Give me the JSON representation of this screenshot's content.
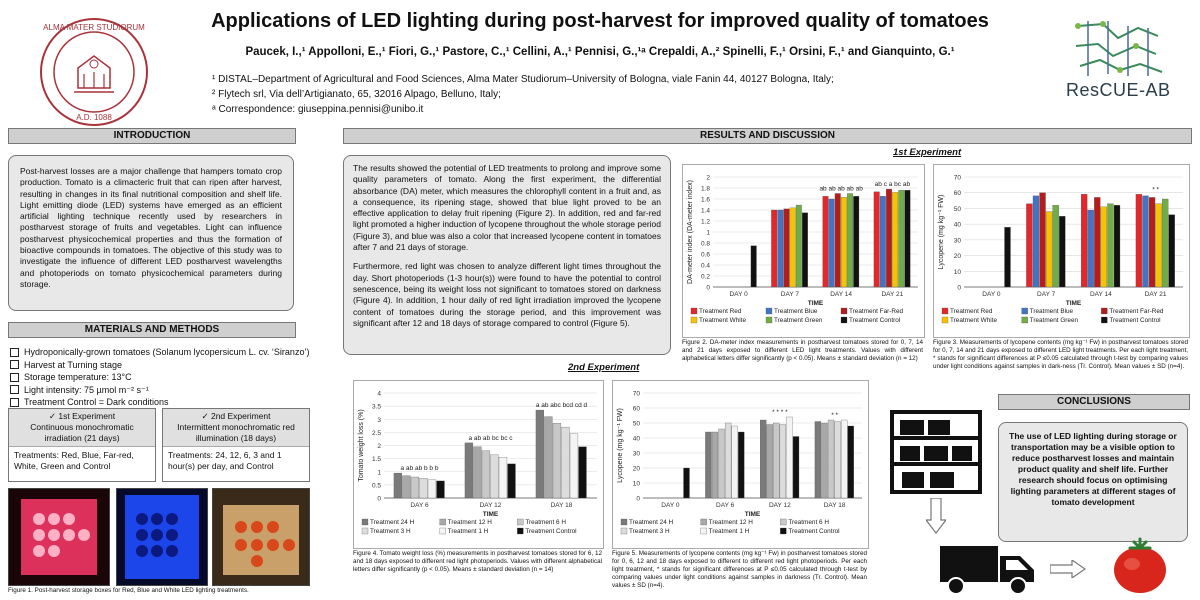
{
  "header": {
    "title": "Applications of LED lighting during post-harvest for improved quality of tomatoes",
    "authors": "Paucek, I.,¹ Appolloni, E.,¹ Fiori, G.,¹ Pastore, C.,¹ Cellini, A.,¹ Pennisi, G.,¹ᵃ Crepaldi, A.,² Spinelli, F.,¹ Orsini, F.,¹ and Gianquinto, G.¹",
    "affiliations": [
      "¹ DISTAL–Department of Agricultural and Food Sciences, Alma Mater Studiorum–University of Bologna, viale Fanin 44, 40127 Bologna, Italy;",
      "² Flytech srl, Via dell’Artigianato, 65, 32016 Alpago, Belluno, Italy;",
      "ᵃ Correspondence:  giuseppina.pennisi@unibo.it"
    ],
    "seal_text": "ALMA MATER STUDIORUM · A.D. 1088",
    "logo_text": "ResCUE-AB"
  },
  "intro": {
    "heading": "INTRODUCTION",
    "text": "Post-harvest losses are a major challenge that hampers tomato crop production. Tomato is a climacteric fruit that can ripen after harvest, resulting in changes in its final nutritional composition and shelf life. Light emitting diode (LED) systems have emerged as an efficient artificial lighting technique recently used by researchers in postharvest storage of fruits and vegetables. Light can influence postharvest physicochemical properties and thus the formation of bioactive compounds in tomatoes. The objective of this study was to investigate the influence of different LED postharvest wavelengths and photoperiods on tomato physicochemical parameters during storage."
  },
  "methods": {
    "heading": "MATERIALS AND METHODS",
    "items": [
      "Hydroponically-grown tomatoes (Solanum lycopersicum L. cv. ‘Siranzo’)",
      "Harvest at Turning stage",
      "Storage temperature: 13°C",
      "Light intensity: 75 µmol m⁻² s⁻¹",
      "Treatment Control = Dark conditions"
    ],
    "exp1": {
      "title": "✓ 1st Experiment",
      "desc": "Continuous monochromatic irradiation (21 days)",
      "treat": "Treatments: Red, Blue, Far-red, White, Green and Control"
    },
    "exp2": {
      "title": "✓ 2nd Experiment",
      "desc": "Intermittent monochromatic red illumination (18 days)",
      "treat": "Treatments: 24, 12, 6, 3 and 1 hour(s) per day, and Control"
    },
    "fig1_caption": "Figure 1. Post-harvest storage boxes for Red, Blue and White LED lighting treatments."
  },
  "results": {
    "heading": "RESULTS AND DISCUSSION",
    "para1": "The results showed the potential of LED treatments to prolong and improve some quality parameters of tomato. Along the first experiment, the differential absorbance (DA) meter, which measures the chlorophyll content in a fruit and, as a consequence, its ripening stage, showed that blue light proved to be an effective application to delay fruit ripening (Figure 2). In addition, red and far-red light promoted a higher induction of lycopene throughout the whole storage period (Figure 3), and blue was also a color that increased lycopene content in tomatoes after 7 and 21 days of storage.",
    "para2": "Furthermore, red light was chosen to analyze different light times throughout the day. Short photoperiods (1-3 hour(s)) were found to have the potential to control senescence, being its weight loss not significant to tomatoes stored on darkness (Figure 4). In addition, 1 hour daily of red light irradiation improved the lycopene content of tomatoes during the storage period, and this improvement was significant after 12 and 18 days of storage compared to control (Figure 5).",
    "exp1_title": "1st Experiment",
    "exp2_title": "2nd Experiment",
    "fig2_caption": "Figure 2. DA-meter index measurements in postharvest tomatoes stored for 0, 7, 14 and 21 days exposed to different LED light treatments. Values with different alphabetical letters differ significantly (p < 0.05). Means ± standard deviation (n = 12)",
    "fig3_caption": "Figure 3. Measurements of lycopene contents (mg kg⁻¹ Fw) in postharvest tomatoes stored for 0, 7, 14 and 21 days exposed to different LED light treatments. Per each light treatment, * stands for significant differences at P ≤0.05 calculated through t-test by comparing values under light conditions against samples in dark-ness (Tr. Control). Mean values ± SD (n=4).",
    "fig4_caption": "Figure 4. Tomato weight loss (%) measurements in postharvest tomatoes stored for 6, 12 and 18 days exposed to different red light photoperiods. Values with different alphabetical letters differ significantly (p < 0.05). Means ± standard deviation (n = 14)",
    "fig5_caption": "Figure 5. Measurements of lycopene contents (mg kg⁻¹ Fw) in postharvest tomatoes stored for 0, 6, 12 and 18 days exposed to different to different red light photoperiods. Per each light treatment, * stands for significant differences at P ≤0.05 calculated through t-test by comparing values under light conditions against samples in darkness (Tr. Control). Mean values ± SD (n=4)."
  },
  "conclusions": {
    "heading": "CONCLUSIONS",
    "text": "The use of LED lighting during storage or transportation may be a visible option to reduce postharvest losses and maintain product quality and shelf life. Further research should focus on optimising lighting parameters at different stages of tomato development"
  },
  "chart_data": [
    {
      "id": "fig2",
      "type": "bar",
      "ylabel": "DA-meter index (DA-meter index)",
      "xlabel": "TIME",
      "ylim": [
        0,
        2
      ],
      "yticks": [
        0,
        0.2,
        0.4,
        0.6,
        0.8,
        1,
        1.2,
        1.4,
        1.6,
        1.8,
        2
      ],
      "categories": [
        "DAY 0",
        "DAY 7",
        "DAY 14",
        "DAY 21"
      ],
      "series": [
        {
          "name": "Treatment Red",
          "color": "#e3272a",
          "values": [
            null,
            1.4,
            1.65,
            1.73
          ]
        },
        {
          "name": "Treatment Blue",
          "color": "#4472c4",
          "values": [
            null,
            1.4,
            1.6,
            1.65
          ]
        },
        {
          "name": "Treatment Far-Red",
          "color": "#b51c1c",
          "values": [
            null,
            1.42,
            1.7,
            1.78
          ]
        },
        {
          "name": "Treatment White",
          "color": "#f5c400",
          "values": [
            null,
            1.44,
            1.63,
            1.72
          ]
        },
        {
          "name": "Treatment Green",
          "color": "#70ad47",
          "values": [
            null,
            1.49,
            1.7,
            1.76
          ]
        },
        {
          "name": "Treatment Control",
          "color": "#111111",
          "values": [
            0.75,
            1.35,
            1.65,
            1.76
          ]
        }
      ],
      "annotations": [
        {
          "cat": 2,
          "text": "ab ab ab ab ab"
        },
        {
          "cat": 3,
          "text": "ab c a bc ab"
        }
      ]
    },
    {
      "id": "fig3",
      "type": "bar",
      "ylabel": "Lycopene (mg kg⁻¹ FW)",
      "xlabel": "TIME",
      "ylim": [
        0,
        70
      ],
      "yticks": [
        0,
        10,
        20,
        30,
        40,
        50,
        60,
        70
      ],
      "categories": [
        "DAY 0",
        "DAY 7",
        "DAY 14",
        "DAY 21"
      ],
      "series": [
        {
          "name": "Treatment Red",
          "color": "#e3272a",
          "values": [
            null,
            53,
            59,
            59
          ]
        },
        {
          "name": "Treatment Blue",
          "color": "#4472c4",
          "values": [
            null,
            58,
            49,
            58
          ]
        },
        {
          "name": "Treatment Far-Red",
          "color": "#b51c1c",
          "values": [
            null,
            60,
            57,
            57
          ]
        },
        {
          "name": "Treatment White",
          "color": "#f5c400",
          "values": [
            null,
            48,
            51,
            53
          ]
        },
        {
          "name": "Treatment Green",
          "color": "#70ad47",
          "values": [
            null,
            52,
            53,
            56
          ]
        },
        {
          "name": "Treatment Control",
          "color": "#111111",
          "values": [
            38,
            45,
            52,
            46
          ]
        }
      ],
      "annotations": [
        {
          "cat": 3,
          "text": "* *"
        }
      ]
    },
    {
      "id": "fig4",
      "type": "bar",
      "ylabel": "Tomato weight loss (%)",
      "xlabel": "TIME",
      "ylim": [
        0,
        4
      ],
      "yticks": [
        0,
        0.5,
        1,
        1.5,
        2,
        2.5,
        3,
        3.5,
        4
      ],
      "categories": [
        "DAY 6",
        "DAY 12",
        "DAY 18"
      ],
      "series": [
        {
          "name": "Treatment 24 H",
          "color": "#7a7a7a",
          "values": [
            0.95,
            2.1,
            3.35
          ]
        },
        {
          "name": "Treatment 12 H",
          "color": "#a8a8a8",
          "values": [
            0.85,
            1.95,
            3.1
          ]
        },
        {
          "name": "Treatment 6 H",
          "color": "#c8c8c8",
          "values": [
            0.8,
            1.8,
            2.85
          ]
        },
        {
          "name": "Treatment 3 H",
          "color": "#dcdcdc",
          "values": [
            0.75,
            1.65,
            2.7
          ]
        },
        {
          "name": "Treatment 1 H",
          "color": "#f4f4f4",
          "values": [
            0.7,
            1.55,
            2.45
          ]
        },
        {
          "name": "Treatment Control",
          "color": "#111111",
          "values": [
            0.65,
            1.3,
            1.95
          ]
        }
      ],
      "annotations": [
        {
          "cat": 0,
          "text": "a ab ab b b b"
        },
        {
          "cat": 1,
          "text": "a ab ab bc bc c"
        },
        {
          "cat": 2,
          "text": "a ab abc bcd cd d"
        }
      ]
    },
    {
      "id": "fig5",
      "type": "bar",
      "ylabel": "Lycopene (mg kg⁻¹ FW)",
      "xlabel": "TIME",
      "ylim": [
        0,
        70
      ],
      "yticks": [
        0,
        10,
        20,
        30,
        40,
        50,
        60,
        70
      ],
      "categories": [
        "DAY 0",
        "DAY 6",
        "DAY 12",
        "DAY 18"
      ],
      "series": [
        {
          "name": "Treatment 24 H",
          "color": "#7a7a7a",
          "values": [
            null,
            44,
            52,
            51
          ]
        },
        {
          "name": "Treatment 12 H",
          "color": "#a8a8a8",
          "values": [
            null,
            44,
            49,
            50
          ]
        },
        {
          "name": "Treatment 6 H",
          "color": "#c8c8c8",
          "values": [
            null,
            46,
            50,
            52
          ]
        },
        {
          "name": "Treatment 3 H",
          "color": "#dcdcdc",
          "values": [
            null,
            50,
            49,
            51
          ]
        },
        {
          "name": "Treatment 1 H",
          "color": "#f4f4f4",
          "values": [
            null,
            48,
            54,
            52
          ]
        },
        {
          "name": "Treatment Control",
          "color": "#111111",
          "values": [
            20,
            44,
            41,
            48
          ]
        }
      ],
      "annotations": [
        {
          "cat": 2,
          "text": "* * * *"
        },
        {
          "cat": 3,
          "text": "* *"
        }
      ]
    }
  ]
}
